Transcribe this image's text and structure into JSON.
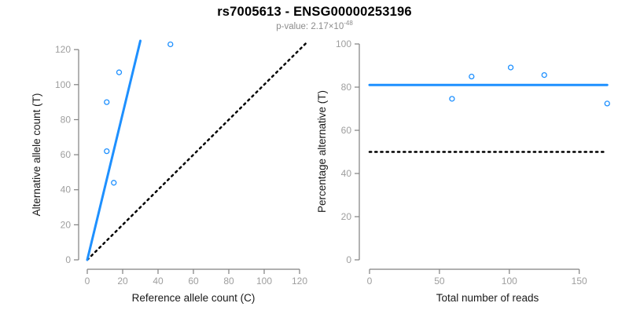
{
  "title": "rs7005613 - ENSG00000253196",
  "subtitle": {
    "prefix": "p-value: 2.17×10",
    "exponent": "-48"
  },
  "colors": {
    "accent_blue": "#1E90FF",
    "axis_line_gray": "#808080",
    "tick_label_gray": "#9e9e9e",
    "axis_title_dark": "#1a1a1a",
    "reference_black": "#000000",
    "subtitle_gray": "#8c8c8c"
  },
  "chart_data": [
    {
      "type": "scatter",
      "title": "",
      "xlabel": "Reference allele count (C)",
      "ylabel": "Alternative allele count (T)",
      "xlim": [
        0,
        124
      ],
      "ylim": [
        0,
        125
      ],
      "xticks": [
        0,
        20,
        40,
        60,
        80,
        100,
        120
      ],
      "yticks": [
        0,
        20,
        40,
        60,
        80,
        100,
        120
      ],
      "points": [
        [
          47,
          123
        ],
        [
          18,
          107
        ],
        [
          11,
          90
        ],
        [
          11,
          62
        ],
        [
          15,
          44
        ]
      ],
      "point_color": "#1E90FF",
      "lines": [
        {
          "id": "identity-line",
          "style": "dotted",
          "color": "#000000",
          "width": 2.5,
          "x1": 0,
          "y1": 0,
          "x2": 124,
          "y2": 124
        },
        {
          "id": "fit-line",
          "style": "solid",
          "color": "#1E90FF",
          "width": 3,
          "x1": 0,
          "y1": 0,
          "x2": 30,
          "y2": 125
        }
      ],
      "grid": false,
      "legend": null
    },
    {
      "type": "scatter",
      "title": "",
      "xlabel": "Total number of reads",
      "ylabel": "Percentage alternative (T)",
      "xlim": [
        0,
        177
      ],
      "ylim": [
        0,
        104
      ],
      "xticks": [
        0,
        50,
        100,
        150
      ],
      "yticks": [
        0,
        20,
        40,
        60,
        80,
        100
      ],
      "points": [
        [
          59,
          74.6
        ],
        [
          73,
          84.9
        ],
        [
          101,
          89.1
        ],
        [
          125,
          85.6
        ],
        [
          170,
          72.4
        ]
      ],
      "point_color": "#1E90FF",
      "lines": [
        {
          "id": "expected-50pct-line",
          "style": "dotted",
          "color": "#000000",
          "width": 2.5,
          "x1": 0,
          "y1": 50,
          "x2": 168,
          "y2": 50
        },
        {
          "id": "mean-pct-line",
          "style": "solid",
          "color": "#1E90FF",
          "width": 3,
          "x1": 0,
          "y1": 81,
          "x2": 170,
          "y2": 81
        }
      ],
      "grid": false,
      "legend": null
    }
  ]
}
